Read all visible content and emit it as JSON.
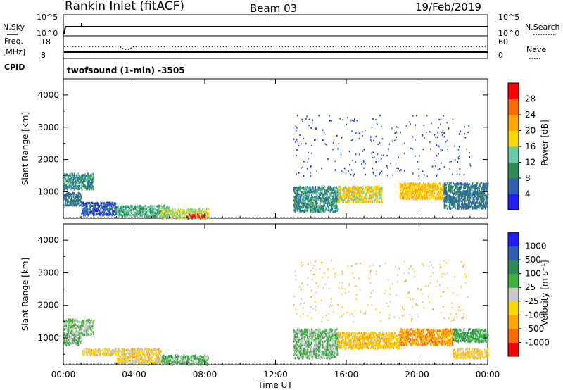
{
  "header": {
    "station": "Rankin Inlet (fitACF)",
    "beam": "Beam 03",
    "date": "19/Feb/2019"
  },
  "status_panel": {
    "nsky_label": "N.Sky",
    "nsky_top": "10^5",
    "nsky_bottom": "10^0",
    "nsearch_label": "N.Search",
    "nsearch_top": "10^5",
    "nsearch_bottom": "10^0",
    "freq_label": "Freq.",
    "freq_unit": "[MHz]",
    "freq_top": "18",
    "freq_bottom": "8",
    "nave_label": "Nave",
    "nave_top": "60",
    "nave_bottom": "0",
    "cpid_label": "CPID",
    "cpid_text": "twofsound (1-min) -3505"
  },
  "axes": {
    "ylabel": "Slant Range [km]",
    "xlabel": "Time UT",
    "y_ticks": [
      "1000",
      "2000",
      "3000",
      "4000"
    ],
    "x_ticks": [
      "00:00",
      "04:00",
      "08:00",
      "12:00",
      "16:00",
      "20:00",
      "00:00"
    ]
  },
  "colorbars": {
    "power_label": "Power [dB]",
    "power_ticks": [
      "4",
      "8",
      "12",
      "16",
      "20",
      "24",
      "28"
    ],
    "velocity_label": "Velocity [m s⁻¹]",
    "velocity_ticks": [
      "1000",
      "500",
      "100",
      "25",
      "-25",
      "-100",
      "-500",
      "-1000"
    ]
  },
  "chart_data": [
    {
      "type": "heatmap",
      "title": "",
      "xlabel": "",
      "ylabel": "Slant Range [km]",
      "x_unit": "hours UT",
      "xlim": [
        0,
        24
      ],
      "ylim": [
        180,
        4500
      ],
      "colorbar": {
        "label": "Power [dB]",
        "range": [
          0,
          32
        ],
        "colors": [
          "#1e1eff",
          "#2d5fb4",
          "#2e8b57",
          "#66cdaa",
          "#ffd700",
          "#ffa500",
          "#ff6a00",
          "#ff0000"
        ]
      },
      "regions": [
        {
          "x": [
            0.0,
            1.7
          ],
          "y": [
            1100,
            1600
          ],
          "value": 10
        },
        {
          "x": [
            0.0,
            1.0
          ],
          "y": [
            600,
            1000
          ],
          "value": 8
        },
        {
          "x": [
            1.0,
            3.0
          ],
          "y": [
            300,
            700
          ],
          "value": 6
        },
        {
          "x": [
            3.0,
            6.0
          ],
          "y": [
            250,
            600
          ],
          "value": 12
        },
        {
          "x": [
            5.5,
            8.2
          ],
          "y": [
            200,
            500
          ],
          "value": 16
        },
        {
          "x": [
            7.0,
            8.0
          ],
          "y": [
            200,
            330
          ],
          "value": 28
        },
        {
          "x": [
            13.0,
            15.5
          ],
          "y": [
            400,
            1200
          ],
          "value": 10
        },
        {
          "x": [
            15.5,
            18.0
          ],
          "y": [
            700,
            1200
          ],
          "value": 18
        },
        {
          "x": [
            19.0,
            21.5
          ],
          "y": [
            800,
            1300
          ],
          "value": 20
        },
        {
          "x": [
            21.5,
            24.0
          ],
          "y": [
            500,
            1300
          ],
          "value": 8
        },
        {
          "x": [
            13.0,
            23.0
          ],
          "y": [
            1500,
            3400
          ],
          "value": 4
        }
      ]
    },
    {
      "type": "heatmap",
      "title": "",
      "xlabel": "Time UT",
      "ylabel": "Slant Range [km]",
      "x_unit": "hours UT",
      "xlim": [
        0,
        24
      ],
      "ylim": [
        180,
        4500
      ],
      "colorbar": {
        "label": "Velocity [m s⁻¹]",
        "range": [
          -1000,
          1000
        ],
        "colors": [
          "#ff0000",
          "#ff6a00",
          "#ffa500",
          "#ffd700",
          "#c8c8c8",
          "#3cb43c",
          "#2e8b57",
          "#2d5fb4",
          "#1e1eff"
        ]
      },
      "regions": [
        {
          "x": [
            0.0,
            1.7
          ],
          "y": [
            1100,
            1600
          ],
          "value": 120
        },
        {
          "x": [
            0.0,
            1.0
          ],
          "y": [
            800,
            1100
          ],
          "value": 150
        },
        {
          "x": [
            1.0,
            3.0
          ],
          "y": [
            500,
            700
          ],
          "value": -150
        },
        {
          "x": [
            3.0,
            5.5
          ],
          "y": [
            250,
            700
          ],
          "value": -200
        },
        {
          "x": [
            5.5,
            8.2
          ],
          "y": [
            200,
            500
          ],
          "value": 200
        },
        {
          "x": [
            13.0,
            15.5
          ],
          "y": [
            400,
            1300
          ],
          "value": 150
        },
        {
          "x": [
            15.5,
            19.0
          ],
          "y": [
            700,
            1200
          ],
          "value": -300
        },
        {
          "x": [
            19.0,
            22.0
          ],
          "y": [
            800,
            1300
          ],
          "value": -500
        },
        {
          "x": [
            22.0,
            24.0
          ],
          "y": [
            900,
            1300
          ],
          "value": 300
        },
        {
          "x": [
            22.0,
            24.0
          ],
          "y": [
            400,
            700
          ],
          "value": -200
        },
        {
          "x": [
            13.0,
            23.0
          ],
          "y": [
            1500,
            3400
          ],
          "value": -150
        }
      ]
    }
  ],
  "colors": {
    "frame": "#000000",
    "background": "#ffffff"
  }
}
